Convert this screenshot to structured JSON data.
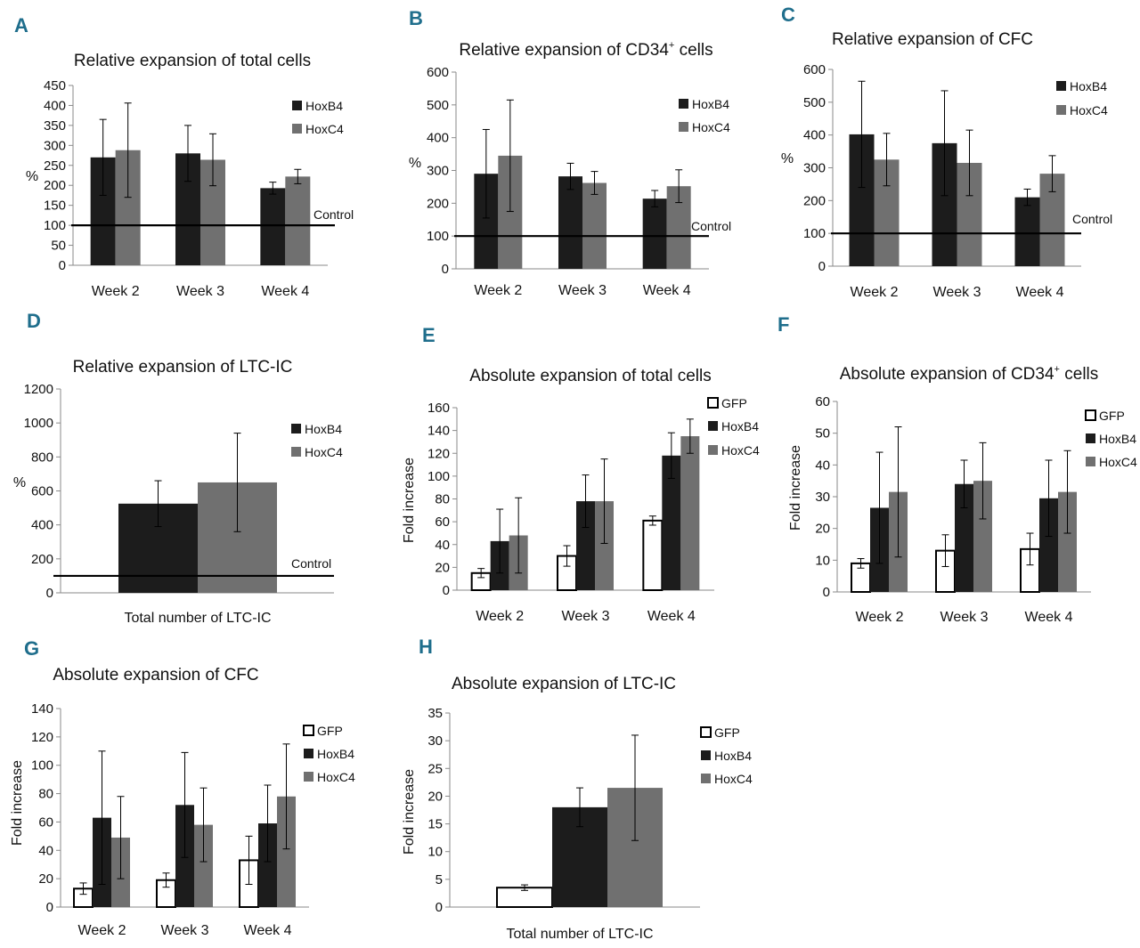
{
  "colors": {
    "letter": "#1f6e8c",
    "gfp_fill": "#ffffff",
    "hoxb4": "#1c1c1c",
    "hoxc4": "#707070",
    "axis": "#8a8a8a",
    "ink": "#111111"
  },
  "chart_data": [
    {
      "id": "A",
      "letter": "A",
      "type": "bar",
      "title": "Relative expansion of total cells",
      "ylabel": "%",
      "xlabel": "",
      "ylim": [
        0,
        450
      ],
      "yticks": [
        "0",
        "50",
        "100",
        "150",
        "200",
        "250",
        "300",
        "350",
        "400",
        "450"
      ],
      "categories": [
        "Week 2",
        "Week 3",
        "Week 4"
      ],
      "series": [
        {
          "name": "HoxB4",
          "values": [
            270,
            280,
            193
          ],
          "errors": [
            95,
            70,
            15
          ]
        },
        {
          "name": "HoxC4",
          "values": [
            288,
            264,
            222
          ],
          "errors": [
            118,
            65,
            18
          ]
        }
      ],
      "reference": {
        "value": 100,
        "label": "Control"
      }
    },
    {
      "id": "B",
      "letter": "B",
      "type": "bar",
      "title": "Relative expansion of CD34",
      "title_sup": "+",
      "title_suffix": " cells",
      "ylabel": "%",
      "xlabel": "",
      "ylim": [
        0,
        600
      ],
      "yticks": [
        "0",
        "100",
        "200",
        "300",
        "400",
        "500",
        "600"
      ],
      "categories": [
        "Week 2",
        "Week 3",
        "Week 4"
      ],
      "series": [
        {
          "name": "HoxB4",
          "values": [
            290,
            282,
            214
          ],
          "errors": [
            135,
            40,
            25
          ]
        },
        {
          "name": "HoxC4",
          "values": [
            345,
            262,
            252
          ],
          "errors": [
            170,
            35,
            50
          ]
        }
      ],
      "reference": {
        "value": 100,
        "label": "Control"
      }
    },
    {
      "id": "C",
      "letter": "C",
      "type": "bar",
      "title": "Relative expansion of CFC",
      "ylabel": "%",
      "xlabel": "",
      "ylim": [
        0,
        600
      ],
      "yticks": [
        "0",
        "100",
        "200",
        "300",
        "400",
        "500",
        "600"
      ],
      "categories": [
        "Week 2",
        "Week 3",
        "Week 4"
      ],
      "series": [
        {
          "name": "HoxB4",
          "values": [
            402,
            375,
            210
          ],
          "errors": [
            162,
            160,
            25
          ]
        },
        {
          "name": "HoxC4",
          "values": [
            325,
            315,
            282
          ],
          "errors": [
            80,
            100,
            55
          ]
        }
      ],
      "reference": {
        "value": 100,
        "label": "Control"
      }
    },
    {
      "id": "D",
      "letter": "D",
      "type": "bar",
      "title": "Relative expansion of LTC-IC",
      "ylabel": "%",
      "xlabel": "Total number of LTC-IC",
      "ylim": [
        0,
        1200
      ],
      "yticks": [
        "0",
        "200",
        "400",
        "600",
        "800",
        "1000",
        "1200"
      ],
      "categories": [
        ""
      ],
      "series": [
        {
          "name": "HoxB4",
          "values": [
            525
          ],
          "errors": [
            135
          ]
        },
        {
          "name": "HoxC4",
          "values": [
            650
          ],
          "errors": [
            290
          ]
        }
      ],
      "reference": {
        "value": 100,
        "label": "Control"
      }
    },
    {
      "id": "E",
      "letter": "E",
      "type": "bar",
      "title": "Absolute expansion of total cells",
      "ylabel": "Fold increase",
      "xlabel": "",
      "ylim": [
        0,
        160
      ],
      "yticks": [
        "0",
        "20",
        "40",
        "60",
        "80",
        "100",
        "120",
        "140",
        "160"
      ],
      "categories": [
        "Week 2",
        "Week 3",
        "Week 4"
      ],
      "series": [
        {
          "name": "GFP",
          "values": [
            15,
            30,
            61
          ],
          "errors": [
            4,
            9,
            4
          ]
        },
        {
          "name": "HoxB4",
          "values": [
            43,
            78,
            118
          ],
          "errors": [
            28,
            23,
            20
          ]
        },
        {
          "name": "HoxC4",
          "values": [
            48,
            78,
            135
          ],
          "errors": [
            33,
            37,
            15
          ]
        }
      ]
    },
    {
      "id": "F",
      "letter": "F",
      "type": "bar",
      "title": "Absolute expansion of CD34",
      "title_sup": "+",
      "title_suffix": " cells",
      "ylabel": "Fold increase",
      "xlabel": "",
      "ylim": [
        0,
        60
      ],
      "yticks": [
        "0",
        "10",
        "20",
        "30",
        "40",
        "50",
        "60"
      ],
      "categories": [
        "Week 2",
        "Week 3",
        "Week 4"
      ],
      "series": [
        {
          "name": "GFP",
          "values": [
            9,
            13,
            13.5
          ],
          "errors": [
            1.5,
            5,
            5
          ]
        },
        {
          "name": "HoxB4",
          "values": [
            26.5,
            34,
            29.5
          ],
          "errors": [
            17.5,
            7.5,
            12
          ]
        },
        {
          "name": "HoxC4",
          "values": [
            31.5,
            35,
            31.5
          ],
          "errors": [
            20.5,
            12,
            13
          ]
        }
      ]
    },
    {
      "id": "G",
      "letter": "G",
      "type": "bar",
      "title": "Absolute expansion of CFC",
      "ylabel": "Fold increase",
      "xlabel": "",
      "ylim": [
        0,
        140
      ],
      "yticks": [
        "0",
        "20",
        "40",
        "60",
        "80",
        "100",
        "120",
        "140"
      ],
      "categories": [
        "Week 2",
        "Week 3",
        "Week 4"
      ],
      "series": [
        {
          "name": "GFP",
          "values": [
            13,
            19,
            33
          ],
          "errors": [
            4,
            5,
            17
          ]
        },
        {
          "name": "HoxB4",
          "values": [
            63,
            72,
            59
          ],
          "errors": [
            47,
            37,
            27
          ]
        },
        {
          "name": "HoxC4",
          "values": [
            49,
            58,
            78
          ],
          "errors": [
            29,
            26,
            37
          ]
        }
      ]
    },
    {
      "id": "H",
      "letter": "H",
      "type": "bar",
      "title": "Absolute expansion of LTC-IC",
      "ylabel": "Fold increase",
      "xlabel": "Total number of LTC-IC",
      "ylim": [
        0,
        35
      ],
      "yticks": [
        "0",
        "5",
        "10",
        "15",
        "20",
        "25",
        "30",
        "35"
      ],
      "categories": [
        ""
      ],
      "series": [
        {
          "name": "GFP",
          "values": [
            3.5
          ],
          "errors": [
            0.5
          ]
        },
        {
          "name": "HoxB4",
          "values": [
            18
          ],
          "errors": [
            3.5
          ]
        },
        {
          "name": "HoxC4",
          "values": [
            21.5
          ],
          "errors": [
            9.5
          ]
        }
      ]
    }
  ]
}
